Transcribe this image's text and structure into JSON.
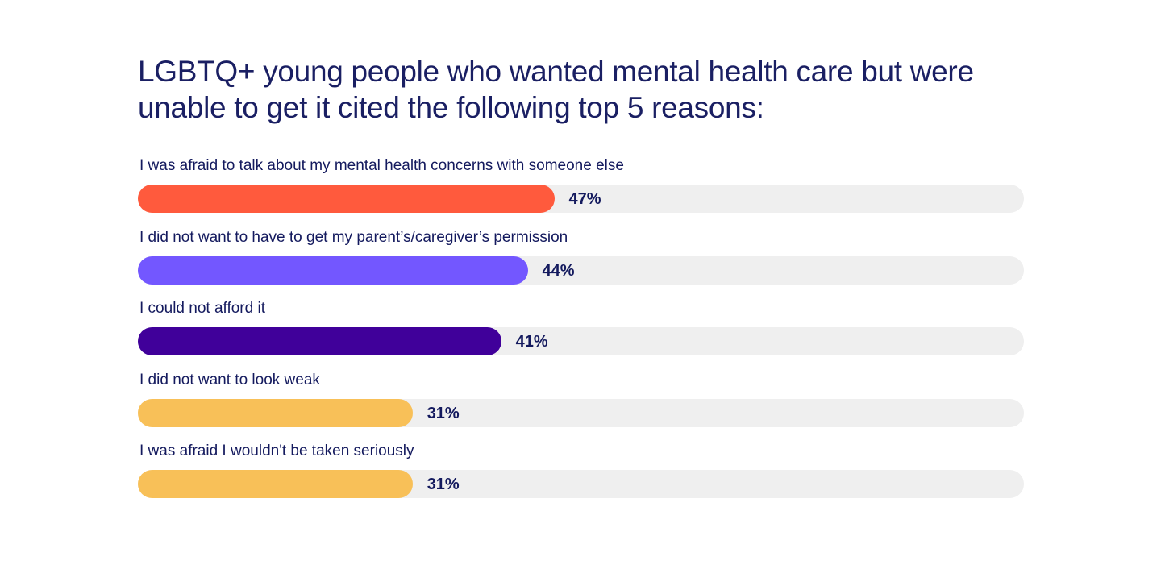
{
  "chart_data": {
    "type": "bar",
    "orientation": "horizontal",
    "title": "LGBTQ+ young people who wanted mental health care but were unable to get it cited the following top 5 reasons:",
    "xlabel": "",
    "ylabel": "",
    "xlim": [
      0,
      100
    ],
    "grid": false,
    "legend": "none",
    "categories": [
      "I was afraid to talk about my mental health concerns with someone else",
      "I did not want to have to get my parent’s/caregiver’s permission",
      "I could not afford it",
      "I did not want to look weak",
      "I was afraid I wouldn't be taken seriously"
    ],
    "values": [
      47,
      44,
      41,
      31,
      31
    ],
    "value_labels": [
      "47%",
      "44%",
      "41%",
      "31%",
      "31%"
    ],
    "colors": [
      "#FF5A3D",
      "#7357FF",
      "#40009A",
      "#F8C058",
      "#F8C058"
    ],
    "track_color": "#EFEFEF"
  }
}
